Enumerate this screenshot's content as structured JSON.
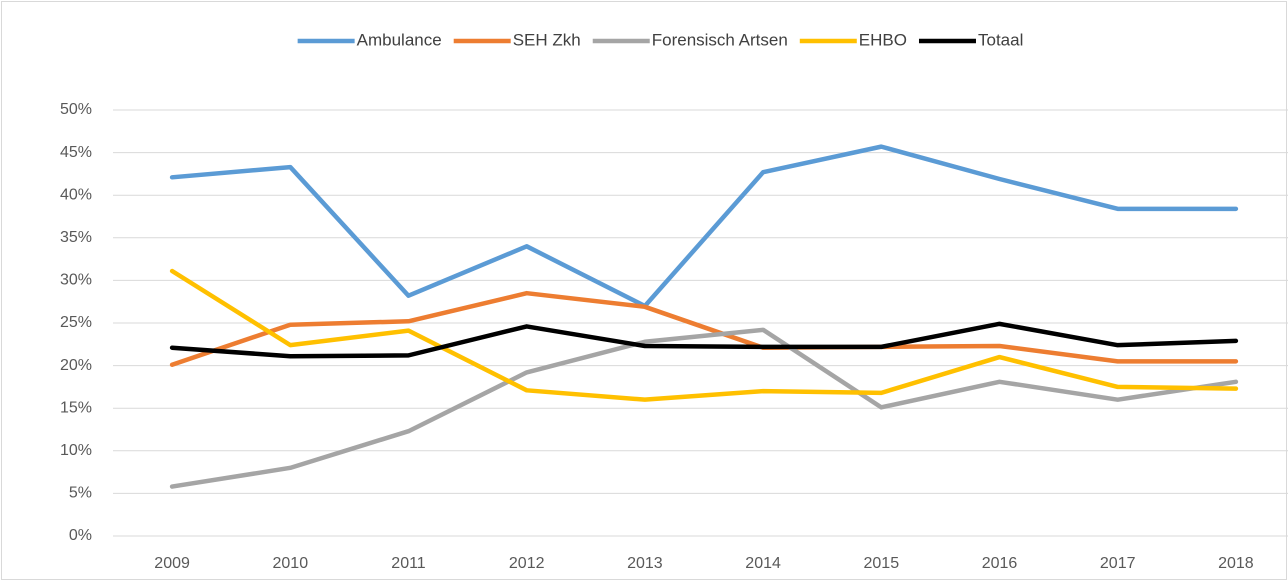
{
  "chart_data": {
    "type": "line",
    "categories": [
      "2009",
      "2010",
      "2011",
      "2012",
      "2013",
      "2014",
      "2015",
      "2016",
      "2017",
      "2018"
    ],
    "series": [
      {
        "name": "Ambulance",
        "color": "#5b9bd5",
        "values": [
          42.1,
          43.3,
          28.2,
          34.0,
          27.0,
          42.7,
          45.7,
          41.9,
          38.4,
          38.4
        ]
      },
      {
        "name": "SEH Zkh",
        "color": "#ed7d31",
        "values": [
          20.1,
          24.8,
          25.2,
          28.5,
          26.9,
          22.1,
          22.2,
          22.3,
          20.5,
          20.5
        ]
      },
      {
        "name": "Forensisch Artsen",
        "color": "#a5a5a5",
        "values": [
          5.8,
          8.0,
          12.3,
          19.2,
          22.8,
          24.2,
          15.1,
          18.1,
          16.0,
          18.1
        ]
      },
      {
        "name": "EHBO",
        "color": "#ffc000",
        "values": [
          31.1,
          22.4,
          24.1,
          17.1,
          16.0,
          17.0,
          16.8,
          21.0,
          17.5,
          17.3
        ]
      },
      {
        "name": "Totaal",
        "color": "#000000",
        "values": [
          22.1,
          21.1,
          21.2,
          24.6,
          22.3,
          22.2,
          22.2,
          24.9,
          22.4,
          22.9
        ]
      }
    ],
    "ylim": [
      0,
      50
    ],
    "yticks": [
      {
        "value": 0,
        "label": "0%"
      },
      {
        "value": 5,
        "label": "5%"
      },
      {
        "value": 10,
        "label": "10%"
      },
      {
        "value": 15,
        "label": "15%"
      },
      {
        "value": 20,
        "label": "20%"
      },
      {
        "value": 25,
        "label": "25%"
      },
      {
        "value": 30,
        "label": "30%"
      },
      {
        "value": 35,
        "label": "35%"
      },
      {
        "value": 40,
        "label": "40%"
      },
      {
        "value": 45,
        "label": "45%"
      },
      {
        "value": 50,
        "label": "50%"
      }
    ],
    "grid": true,
    "legend": "top"
  }
}
